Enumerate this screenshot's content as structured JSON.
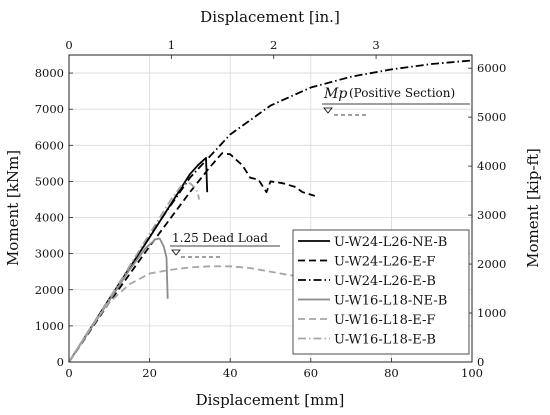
{
  "chart_data": {
    "type": "line",
    "xlabel": "Displacement [mm]",
    "x2label": "Displacement [in.]",
    "ylabel": "Moment [kNm]",
    "y2label": "Moment [kip-ft]",
    "xlim": [
      0,
      100
    ],
    "ylim": [
      0,
      8500
    ],
    "x2lim": [
      0,
      3.937
    ],
    "y2lim": [
      0,
      6269
    ],
    "x_ticks": [
      0,
      20,
      40,
      60,
      80,
      100
    ],
    "y_ticks": [
      0,
      1000,
      2000,
      3000,
      4000,
      5000,
      6000,
      7000,
      8000
    ],
    "x2_ticks": [
      0,
      1,
      2,
      3
    ],
    "y2_ticks": [
      0,
      1000,
      2000,
      3000,
      4000,
      5000,
      6000
    ],
    "grid": true,
    "legend_position": "lower-right",
    "series": [
      {
        "name": "U-W24-L26-NE-B",
        "color": "#000000",
        "dash": "solid",
        "x": [
          0,
          10,
          20,
          26,
          30,
          32,
          33.5,
          34,
          34.3
        ],
        "y": [
          0,
          1750,
          3450,
          4500,
          5200,
          5450,
          5600,
          5650,
          4700
        ]
      },
      {
        "name": "U-W24-L26-E-F",
        "color": "#000000",
        "dash": "dashed",
        "x": [
          0,
          10,
          20,
          30,
          35,
          38,
          40,
          43,
          45,
          47,
          49,
          50,
          53,
          56,
          58,
          61
        ],
        "y": [
          0,
          1650,
          3200,
          4700,
          5400,
          5780,
          5750,
          5450,
          5100,
          5050,
          4700,
          5000,
          4950,
          4850,
          4700,
          4600
        ]
      },
      {
        "name": "U-W24-L26-E-B",
        "color": "#000000",
        "dash": "dashdot",
        "x": [
          0,
          10,
          20,
          30,
          40,
          50,
          60,
          70,
          80,
          90,
          100
        ],
        "y": [
          0,
          1750,
          3500,
          5100,
          6300,
          7100,
          7600,
          7900,
          8100,
          8250,
          8350
        ]
      },
      {
        "name": "U-W16-L18-NE-B",
        "color": "#8c8c8c",
        "dash": "solid",
        "x": [
          0,
          5,
          10,
          15,
          19,
          21.5,
          22.5,
          23.5,
          24.2,
          24.5
        ],
        "y": [
          0,
          850,
          1700,
          2550,
          3150,
          3400,
          3420,
          3200,
          2900,
          1750
        ]
      },
      {
        "name": "U-W16-L18-E-F",
        "color": "#a6a6a6",
        "dash": "dashed",
        "x": [
          0,
          5,
          10,
          15,
          20,
          25,
          30,
          35,
          40,
          45,
          50,
          55,
          60
        ],
        "y": [
          0,
          900,
          1650,
          2150,
          2450,
          2550,
          2620,
          2650,
          2650,
          2600,
          2500,
          2400,
          2300
        ]
      },
      {
        "name": "U-W16-L18-E-B",
        "color": "#a6a6a6",
        "dash": "dashdot",
        "x": [
          0,
          10,
          20,
          25,
          28,
          30,
          31.5,
          32,
          32.3
        ],
        "y": [
          0,
          1750,
          3550,
          4450,
          4900,
          4950,
          4800,
          4650,
          4500
        ]
      }
    ],
    "annotations": [
      {
        "text": "1.25 Dead Load",
        "x_data": 24.5,
        "y_data": 3100
      },
      {
        "text_italic": "Mp",
        "text": "(Positive Section)",
        "x_data": 63,
        "y_data": 7200
      }
    ]
  }
}
